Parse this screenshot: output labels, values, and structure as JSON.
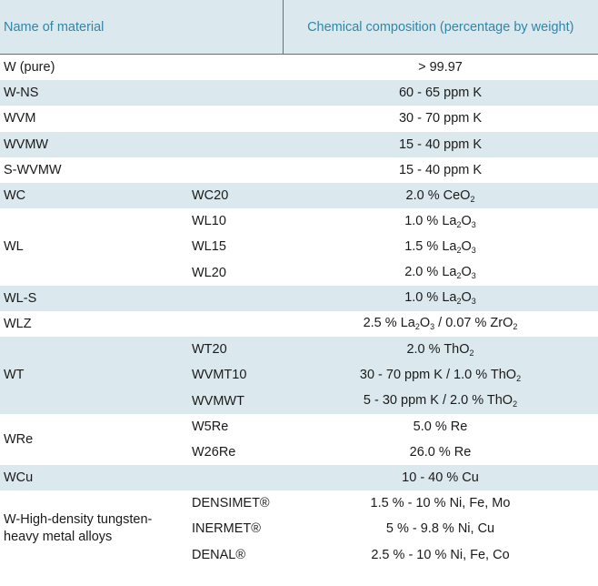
{
  "header": {
    "name": "Name of material",
    "composition": "Chemical composition (percentage by weight)"
  },
  "rows": {
    "w_pure": {
      "name": "W (pure)",
      "comp": "> 99.97"
    },
    "w_ns": {
      "name": "W-NS",
      "comp": "60 - 65 ppm K"
    },
    "wvm": {
      "name": "WVM",
      "comp": "30 - 70 ppm K"
    },
    "wvmw": {
      "name": "WVMW",
      "comp": "15 - 40 ppm K"
    },
    "s_wvmw": {
      "name": "S-WVMW",
      "comp": "15 - 40 ppm K"
    },
    "wc": {
      "name": "WC",
      "sub": "WC20",
      "comp_a": "2.0 % CeO",
      "comp_s1": "2"
    },
    "wl": {
      "name": "WL",
      "items": [
        {
          "sub": "WL10",
          "comp_a": "1.0 % La",
          "comp_s1": "2",
          "comp_b": "O",
          "comp_s2": "3"
        },
        {
          "sub": "WL15",
          "comp_a": "1.5 % La",
          "comp_s1": "2",
          "comp_b": "O",
          "comp_s2": "3"
        },
        {
          "sub": "WL20",
          "comp_a": "2.0 % La",
          "comp_s1": "2",
          "comp_b": "O",
          "comp_s2": "3"
        }
      ]
    },
    "wl_s": {
      "name": "WL-S",
      "comp_a": "1.0 % La",
      "comp_s1": "2",
      "comp_b": "O",
      "comp_s2": "3"
    },
    "wlz": {
      "name": "WLZ",
      "comp_a": "2.5 % La",
      "comp_s1": "2",
      "comp_b": "O",
      "comp_s2": "3",
      "comp_c": " / 0.07 % ZrO",
      "comp_s3": "2"
    },
    "wt": {
      "name": "WT",
      "items": [
        {
          "sub": "WT20",
          "comp_a": "2.0 % ThO",
          "comp_s1": "2"
        },
        {
          "sub": "WVMT10",
          "comp_a": "30 - 70 ppm K / 1.0 % ThO",
          "comp_s1": "2"
        },
        {
          "sub": "WVMWT",
          "comp_a": "5 - 30 ppm K / 2.0 % ThO",
          "comp_s1": "2"
        }
      ]
    },
    "wre": {
      "name": "WRe",
      "items": [
        {
          "sub": "W5Re",
          "comp": "5.0 % Re"
        },
        {
          "sub": "W26Re",
          "comp": "26.0 % Re"
        }
      ]
    },
    "wcu": {
      "name": "WCu",
      "comp": "10 - 40 % Cu"
    },
    "heavy": {
      "name_l1": "W-High-density tungsten-",
      "name_l2": "heavy metal alloys",
      "items": [
        {
          "sub": "DENSIMET®",
          "comp": "1.5 % - 10 % Ni, Fe, Mo"
        },
        {
          "sub": "INERMET®",
          "comp": "5 % - 9.8 % Ni, Cu"
        },
        {
          "sub": "DENAL®",
          "comp": "2.5 % - 10 % Ni, Fe, Co"
        }
      ]
    }
  }
}
